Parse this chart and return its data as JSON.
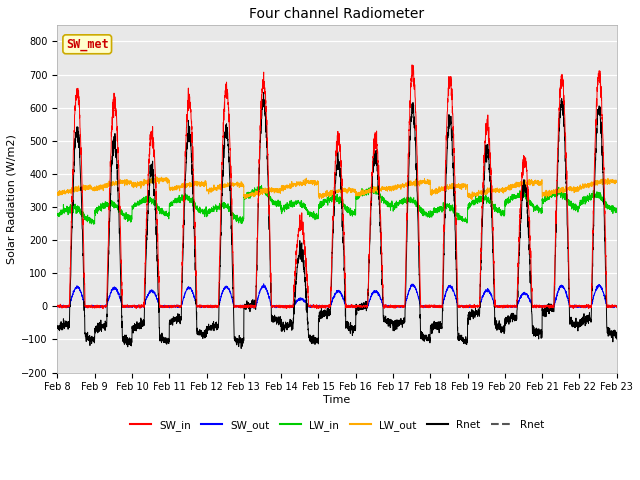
{
  "title": "Four channel Radiometer",
  "xlabel": "Time",
  "ylabel": "Solar Radiation (W/m2)",
  "ylim": [
    -200,
    850
  ],
  "yticks": [
    -200,
    -100,
    0,
    100,
    200,
    300,
    400,
    500,
    600,
    700,
    800
  ],
  "n_days": 15,
  "xtick_labels": [
    "Feb 8",
    "Feb 9",
    "Feb 10",
    "Feb 11",
    "Feb 12",
    "Feb 13",
    "Feb 14",
    "Feb 15",
    "Feb 16",
    "Feb 17",
    "Feb 18",
    "Feb 19",
    "Feb 20",
    "Feb 21",
    "Feb 22",
    "Feb 23"
  ],
  "annotation_text": "SW_met",
  "annotation_color": "#cc0000",
  "annotation_bg": "#ffffcc",
  "annotation_border": "#ccaa00",
  "legend_entries": [
    "SW_in",
    "SW_out",
    "LW_in",
    "LW_out",
    "Rnet",
    "Rnet"
  ],
  "line_colors": [
    "#ff0000",
    "#0000ff",
    "#00cc00",
    "#ffaa00",
    "#000000",
    "#555555"
  ],
  "plot_bg": "#e8e8e8",
  "fig_bg": "#ffffff",
  "grid_color": "#ffffff",
  "sw_in_peaks": [
    650,
    615,
    520,
    625,
    660,
    680,
    250,
    510,
    510,
    710,
    680,
    550,
    440,
    690,
    700
  ],
  "title_fontsize": 10,
  "axis_fontsize": 8,
  "tick_fontsize": 7,
  "legend_fontsize": 7.5
}
